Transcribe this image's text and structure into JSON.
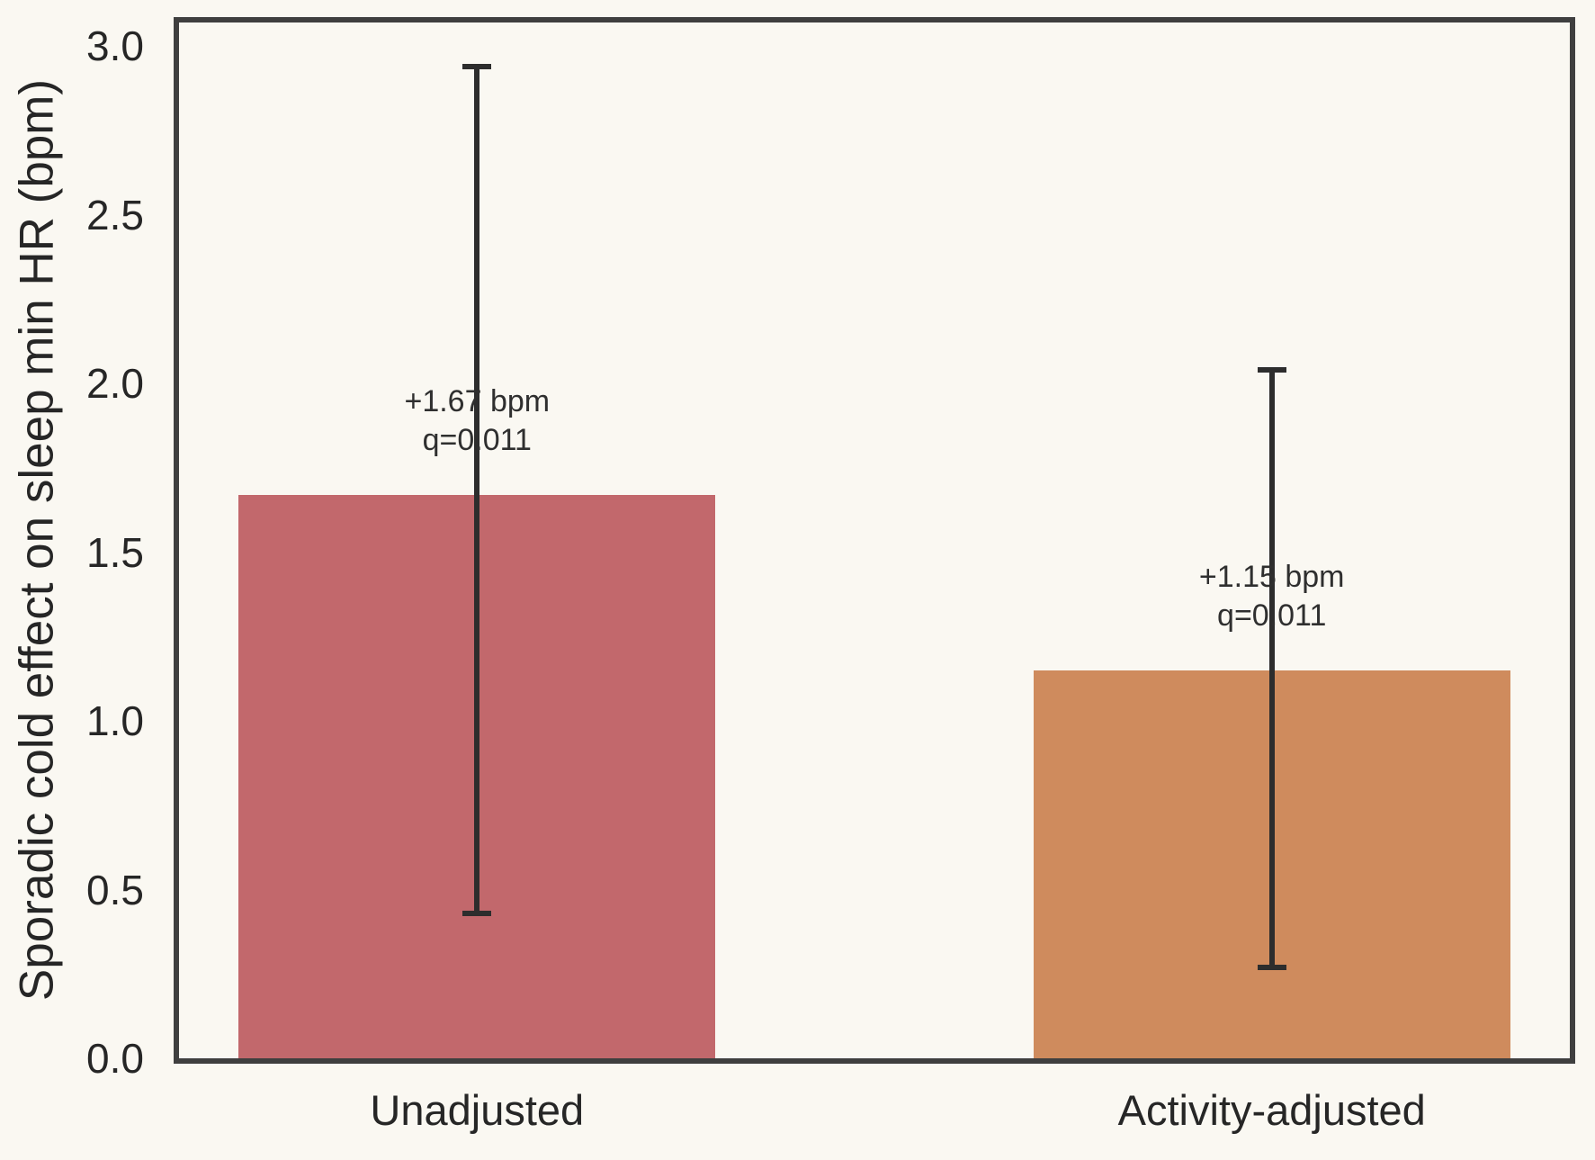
{
  "figure": {
    "background_color": "#FAF8F2",
    "spine_color": "#3F3F3F",
    "errorbar_color": "#2D2D2D",
    "text_color": "#262626"
  },
  "chart_data": {
    "type": "bar",
    "title": "",
    "xlabel": "",
    "ylabel": "Sporadic cold effect on sleep min HR (bpm)",
    "categories": [
      "Unadjusted",
      "Activity-adjusted"
    ],
    "values": [
      1.67,
      1.15
    ],
    "error_low": [
      0.43,
      0.27
    ],
    "error_high": [
      2.94,
      2.04
    ],
    "bar_colors": [
      "#C2686C",
      "#CF8B5D"
    ],
    "annotations": [
      {
        "lines": [
          "+1.67 bpm",
          "q=0.011"
        ],
        "x": 0,
        "y": 1.89
      },
      {
        "lines": [
          "+1.15 bpm",
          "q=0.011"
        ],
        "x": 1,
        "y": 1.37
      }
    ],
    "yticks": [
      {
        "value": 0.0,
        "label": "0.0"
      },
      {
        "value": 0.5,
        "label": "0.5"
      },
      {
        "value": 1.0,
        "label": "1.0"
      },
      {
        "value": 1.5,
        "label": "1.5"
      },
      {
        "value": 2.0,
        "label": "2.0"
      },
      {
        "value": 2.5,
        "label": "2.5"
      },
      {
        "value": 3.0,
        "label": "3.0"
      }
    ],
    "ylim": [
      0,
      3.07
    ],
    "xlim": [
      -0.375,
      1.375
    ],
    "bar_positions": [
      0,
      1
    ],
    "bar_width_units": 0.6,
    "grid": false,
    "legend": null
  }
}
